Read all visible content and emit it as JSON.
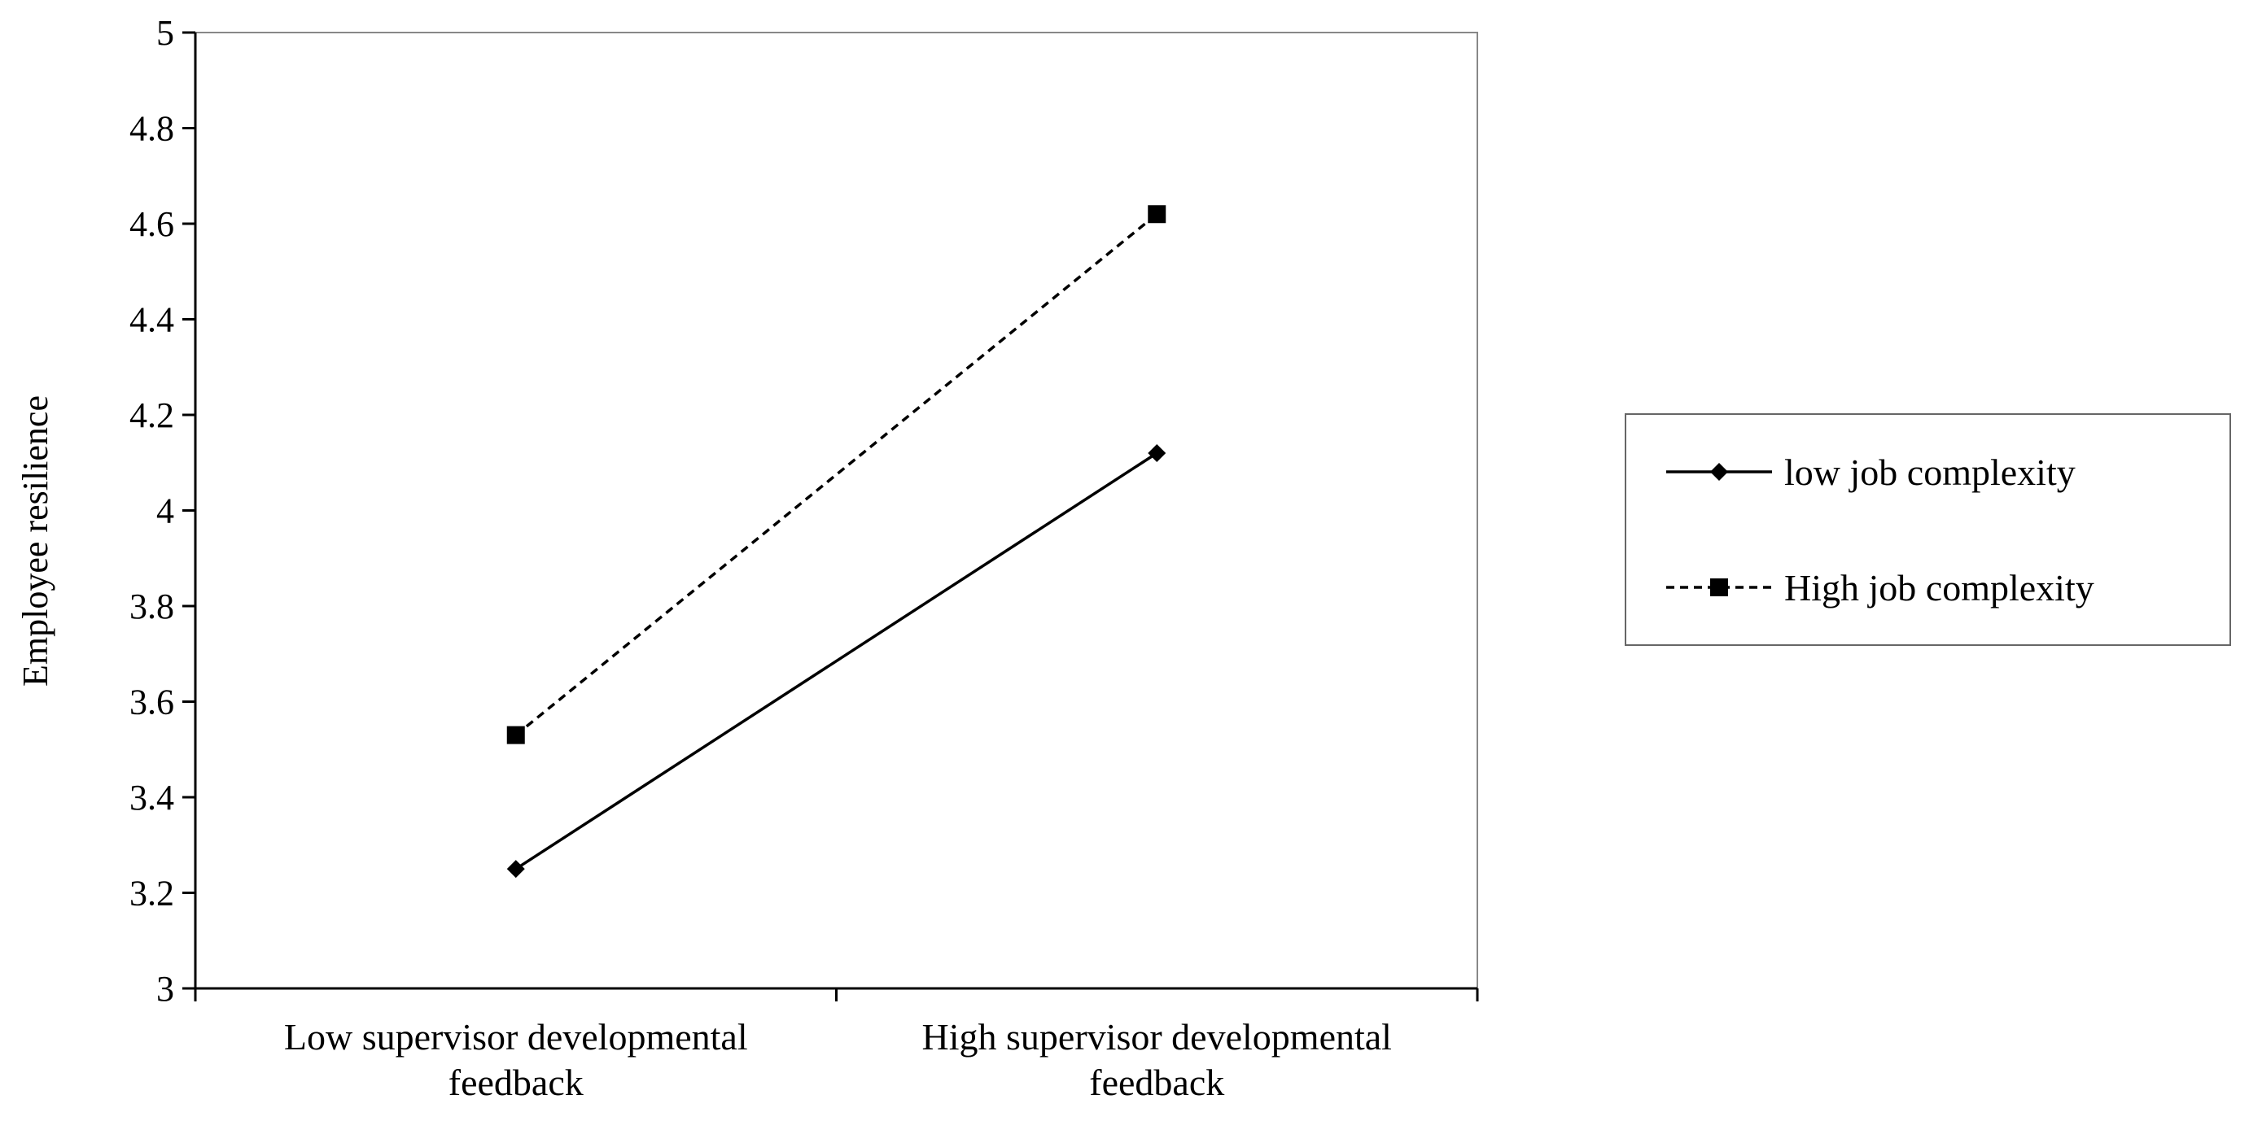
{
  "chart_data": {
    "type": "line",
    "ylabel": "Employee resilience",
    "xlabel": "",
    "ylim": [
      3,
      5
    ],
    "yticks": [
      "3",
      "3.2",
      "3.4",
      "3.6",
      "3.8",
      "4",
      "4.2",
      "4.4",
      "4.6",
      "4.8",
      "5"
    ],
    "categories": [
      [
        "Low supervisor developmental",
        "feedback"
      ],
      [
        "High supervisor developmental",
        "feedback"
      ]
    ],
    "series": [
      {
        "name": "low job complexity",
        "values": [
          3.25,
          4.12
        ],
        "line_style": "solid",
        "marker": "diamond",
        "color": "#000000"
      },
      {
        "name": "High job complexity",
        "values": [
          3.53,
          4.62
        ],
        "line_style": "dashed",
        "marker": "square",
        "color": "#000000"
      }
    ],
    "grid": false,
    "legend_position": "right"
  }
}
